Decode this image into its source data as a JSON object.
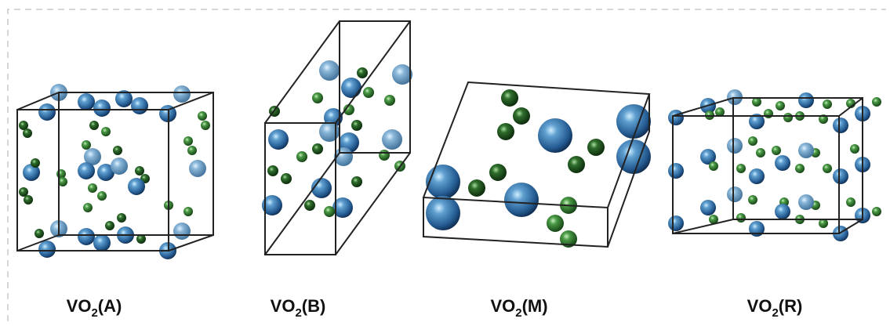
{
  "panels": [
    {
      "label": {
        "main": "VO",
        "sub": "2",
        "suffix": "(A)"
      }
    },
    {
      "label": {
        "main": "VO",
        "sub": "2",
        "suffix": "(B)"
      }
    },
    {
      "label": {
        "main": "VO",
        "sub": "2",
        "suffix": "(M)"
      }
    },
    {
      "label": {
        "main": "VO",
        "sub": "2",
        "suffix": "(R)"
      }
    }
  ]
}
